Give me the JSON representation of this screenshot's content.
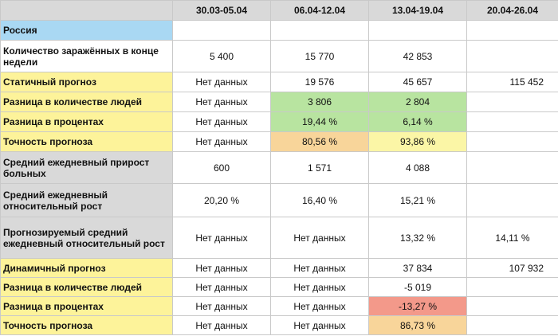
{
  "columns": [
    "",
    "30.03-05.04",
    "06.04-12.04",
    "13.04-19.04",
    "20.04-26.04"
  ],
  "rows": [
    {
      "label": "Россия",
      "values": [
        "",
        "",
        "",
        ""
      ]
    },
    {
      "label": "Количество заражённых в конце недели",
      "values": [
        "5 400",
        "15 770",
        "42 853",
        ""
      ]
    },
    {
      "label": "Статичный прогноз",
      "values": [
        "Нет данных",
        "19 576",
        "45 657",
        "115 452"
      ]
    },
    {
      "label": "Разница в количестве людей",
      "values": [
        "Нет данных",
        "3 806",
        "2 804",
        ""
      ]
    },
    {
      "label": "Разница в процентах",
      "values": [
        "Нет данных",
        "19,44 %",
        "6,14 %",
        ""
      ]
    },
    {
      "label": "Точность прогноза",
      "values": [
        "Нет данных",
        "80,56 %",
        "93,86 %",
        ""
      ]
    },
    {
      "label": "Средний ежедневный прирост больных",
      "values": [
        "600",
        "1 571",
        "4 088",
        ""
      ]
    },
    {
      "label": "Средний ежедневный относительный рост",
      "values": [
        "20,20 %",
        "16,40 %",
        "15,21 %",
        ""
      ]
    },
    {
      "label": "Прогнозируемый средний ежедневный  относительный рост",
      "values": [
        "Нет данных",
        "Нет данных",
        "13,32 %",
        "14,11 %"
      ]
    },
    {
      "label": "Динамичный прогноз",
      "values": [
        "Нет данных",
        "Нет данных",
        "37 834",
        "107 932"
      ]
    },
    {
      "label": "Разница в количестве людей",
      "values": [
        "Нет данных",
        "Нет данных",
        "-5 019",
        ""
      ]
    },
    {
      "label": "Разница в процентах",
      "values": [
        "Нет данных",
        "Нет данных",
        "-13,27 %",
        ""
      ]
    },
    {
      "label": "Точность прогноза",
      "values": [
        "Нет данных",
        "Нет данных",
        "86,73 %",
        ""
      ]
    }
  ],
  "colors": {
    "header": "#d9d9d9",
    "region": "#a9d8f3",
    "forecast": "#fdf39a",
    "stats": "#d9d9d9",
    "good": "#b8e4a0",
    "warn": "#f8d59a",
    "fair": "#fbf6a6",
    "bad": "#f3998a"
  }
}
